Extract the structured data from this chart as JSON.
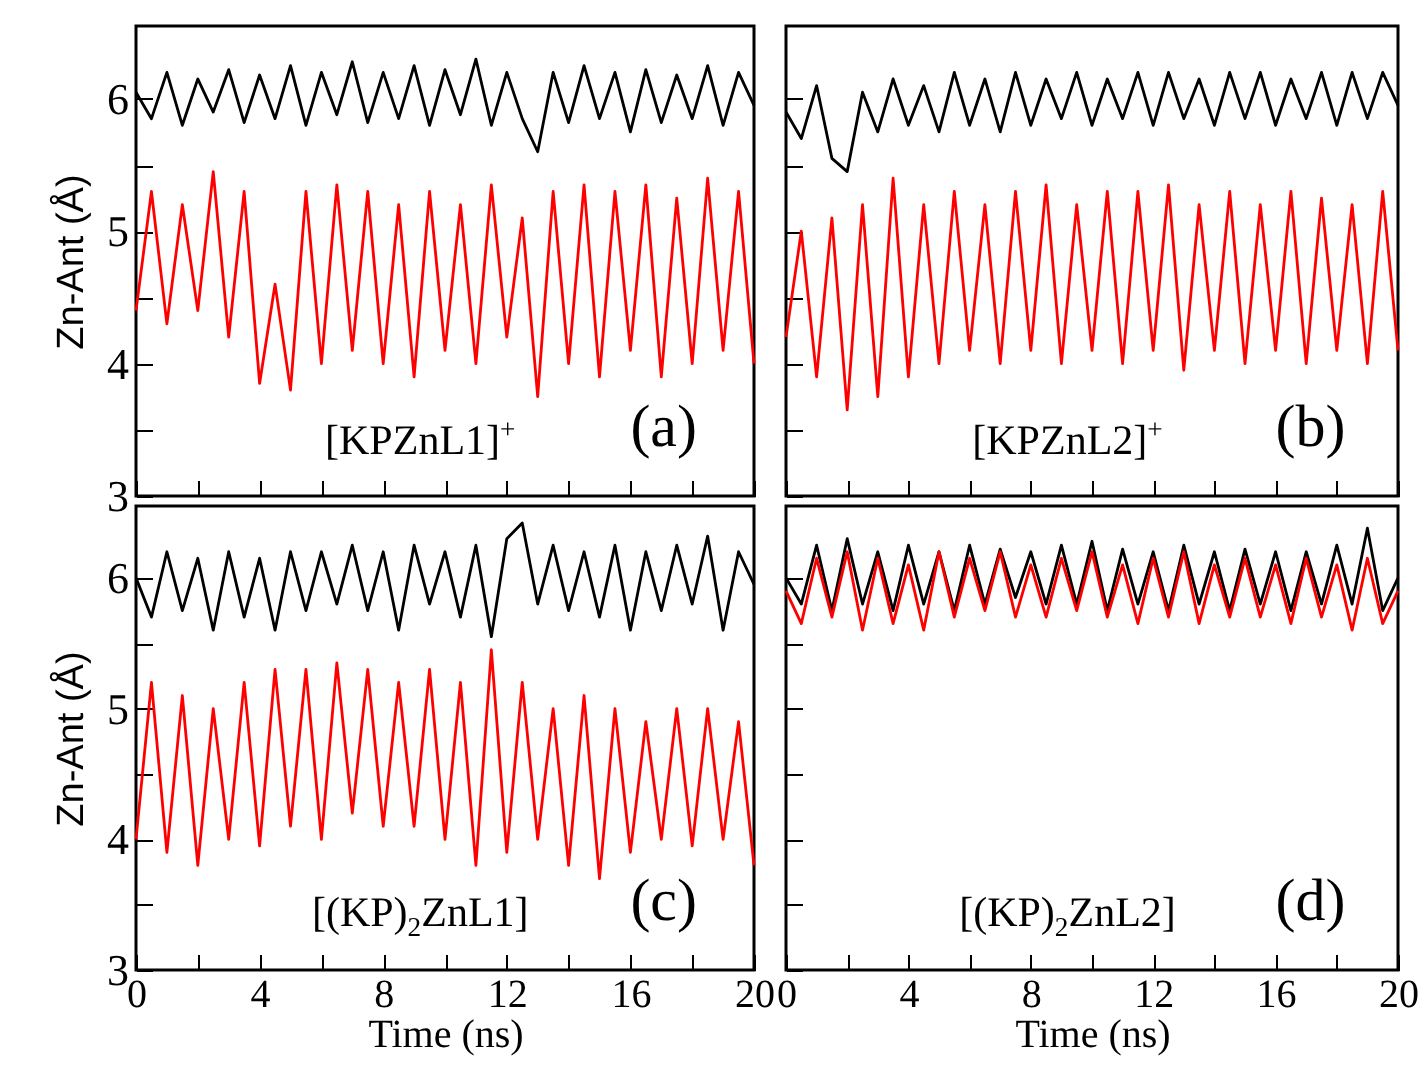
{
  "chart_data": [
    {
      "type": "line",
      "ylabel": "Zn-Ant  (Å)",
      "annotations": [
        "[KPZnL1]$^{+}$",
        "(a)"
      ],
      "tick_labels": "y",
      "xlim": [
        0,
        20
      ],
      "xticks": [
        0,
        {
          "value": 2,
          "label": null
        },
        4,
        {
          "value": 6,
          "label": null
        },
        8,
        {
          "value": 10,
          "label": null
        },
        12,
        {
          "value": 14,
          "label": null
        },
        16,
        {
          "value": 18,
          "label": null
        },
        20
      ],
      "ylim": [
        3,
        6.55
      ],
      "yticks": [
        3,
        {
          "value": 3.5,
          "label": null
        },
        4,
        {
          "value": 4.5,
          "label": null
        },
        5,
        {
          "value": 5.5,
          "label": null
        },
        6
      ],
      "x": [
        0,
        0.5,
        1,
        1.5,
        2,
        2.5,
        3,
        3.5,
        4,
        4.5,
        5,
        5.5,
        6,
        6.5,
        7,
        7.5,
        8,
        8.5,
        9,
        9.5,
        10,
        10.5,
        11,
        11.5,
        12,
        12.5,
        13,
        13.5,
        14,
        14.5,
        15,
        15.5,
        16,
        16.5,
        17,
        17.5,
        18,
        18.5,
        19,
        19.5,
        20
      ],
      "series": [
        {
          "color": "#000000",
          "values": [
            6.05,
            5.85,
            6.2,
            5.8,
            6.15,
            5.9,
            6.22,
            5.82,
            6.18,
            5.85,
            6.25,
            5.8,
            6.2,
            5.88,
            6.28,
            5.82,
            6.2,
            5.85,
            6.25,
            5.8,
            6.22,
            5.88,
            6.3,
            5.8,
            6.2,
            5.85,
            5.6,
            6.2,
            5.82,
            6.25,
            5.85,
            6.2,
            5.75,
            6.22,
            5.82,
            6.18,
            5.85,
            6.25,
            5.8,
            6.2,
            5.95
          ]
        },
        {
          "color": "#ff0000",
          "values": [
            4.4,
            5.3,
            4.3,
            5.2,
            4.4,
            5.45,
            4.2,
            5.3,
            3.85,
            4.6,
            3.8,
            5.3,
            4.0,
            5.35,
            4.1,
            5.3,
            4.0,
            5.2,
            3.9,
            5.3,
            4.1,
            5.2,
            4.0,
            5.35,
            4.2,
            5.1,
            3.75,
            5.3,
            4.0,
            5.35,
            3.9,
            5.3,
            4.1,
            5.35,
            3.9,
            5.25,
            4.0,
            5.4,
            4.1,
            5.3,
            4.0
          ]
        }
      ]
    },
    {
      "type": "line",
      "annotations": [
        "[KPZnL2]$^{+}$",
        "(b)"
      ],
      "tick_labels": false,
      "xlim": [
        0,
        20
      ],
      "xticks": [
        0,
        {
          "value": 2,
          "label": null
        },
        4,
        {
          "value": 6,
          "label": null
        },
        8,
        {
          "value": 10,
          "label": null
        },
        12,
        {
          "value": 14,
          "label": null
        },
        16,
        {
          "value": 18,
          "label": null
        },
        20
      ],
      "ylim": [
        3,
        6.55
      ],
      "yticks": [
        3,
        {
          "value": 3.5,
          "label": null
        },
        4,
        {
          "value": 4.5,
          "label": null
        },
        5,
        {
          "value": 5.5,
          "label": null
        },
        6
      ],
      "x": [
        0,
        0.5,
        1,
        1.5,
        2,
        2.5,
        3,
        3.5,
        4,
        4.5,
        5,
        5.5,
        6,
        6.5,
        7,
        7.5,
        8,
        8.5,
        9,
        9.5,
        10,
        10.5,
        11,
        11.5,
        12,
        12.5,
        13,
        13.5,
        14,
        14.5,
        15,
        15.5,
        16,
        16.5,
        17,
        17.5,
        18,
        18.5,
        19,
        19.5,
        20
      ],
      "series": [
        {
          "color": "#000000",
          "values": [
            5.9,
            5.7,
            6.1,
            5.55,
            5.45,
            6.05,
            5.75,
            6.15,
            5.8,
            6.1,
            5.75,
            6.2,
            5.8,
            6.15,
            5.75,
            6.2,
            5.8,
            6.15,
            5.85,
            6.2,
            5.8,
            6.15,
            5.85,
            6.2,
            5.8,
            6.2,
            5.85,
            6.15,
            5.8,
            6.2,
            5.85,
            6.2,
            5.8,
            6.15,
            5.85,
            6.2,
            5.8,
            6.2,
            5.85,
            6.2,
            5.95
          ]
        },
        {
          "color": "#ff0000",
          "values": [
            4.2,
            5.0,
            3.9,
            5.1,
            3.65,
            5.2,
            3.75,
            5.4,
            3.9,
            5.2,
            4.0,
            5.3,
            4.1,
            5.2,
            4.0,
            5.3,
            4.1,
            5.35,
            4.0,
            5.2,
            4.1,
            5.3,
            4.0,
            5.3,
            4.1,
            5.35,
            3.95,
            5.2,
            4.1,
            5.3,
            4.0,
            5.2,
            4.1,
            5.3,
            4.0,
            5.25,
            4.1,
            5.2,
            4.0,
            5.3,
            4.1
          ]
        }
      ]
    },
    {
      "type": "line",
      "xlabel": "Time  (ns)",
      "ylabel": "Zn-Ant  (Å)",
      "annotations": [
        "[(KP)$_{2}$ZnL1]",
        "(c)"
      ],
      "xlim": [
        0,
        20
      ],
      "xticks": [
        0,
        {
          "value": 2,
          "label": null
        },
        4,
        {
          "value": 6,
          "label": null
        },
        8,
        {
          "value": 10,
          "label": null
        },
        12,
        {
          "value": 14,
          "label": null
        },
        16,
        {
          "value": 18,
          "label": null
        },
        20
      ],
      "ylim": [
        3,
        6.55
      ],
      "yticks": [
        3,
        {
          "value": 3.5,
          "label": null
        },
        4,
        {
          "value": 4.5,
          "label": null
        },
        5,
        {
          "value": 5.5,
          "label": null
        },
        6
      ],
      "x": [
        0,
        0.5,
        1,
        1.5,
        2,
        2.5,
        3,
        3.5,
        4,
        4.5,
        5,
        5.5,
        6,
        6.5,
        7,
        7.5,
        8,
        8.5,
        9,
        9.5,
        10,
        10.5,
        11,
        11.5,
        12,
        12.5,
        13,
        13.5,
        14,
        14.5,
        15,
        15.5,
        16,
        16.5,
        17,
        17.5,
        18,
        18.5,
        19,
        19.5,
        20
      ],
      "series": [
        {
          "color": "#000000",
          "values": [
            6.0,
            5.7,
            6.2,
            5.75,
            6.15,
            5.6,
            6.2,
            5.7,
            6.15,
            5.6,
            6.2,
            5.75,
            6.2,
            5.8,
            6.25,
            5.75,
            6.2,
            5.6,
            6.25,
            5.8,
            6.2,
            5.7,
            6.25,
            5.55,
            6.3,
            6.42,
            5.8,
            6.25,
            5.75,
            6.2,
            5.7,
            6.25,
            5.6,
            6.2,
            5.75,
            6.25,
            5.8,
            6.32,
            5.6,
            6.2,
            5.95
          ]
        },
        {
          "color": "#ff0000",
          "values": [
            4.0,
            5.2,
            3.9,
            5.1,
            3.8,
            5.0,
            4.0,
            5.2,
            3.95,
            5.3,
            4.1,
            5.3,
            4.0,
            5.35,
            4.2,
            5.3,
            4.1,
            5.2,
            4.1,
            5.3,
            4.0,
            5.2,
            3.8,
            5.45,
            3.9,
            5.2,
            4.0,
            5.0,
            3.8,
            5.1,
            3.7,
            5.0,
            3.9,
            4.9,
            4.0,
            5.0,
            3.95,
            5.0,
            4.0,
            4.9,
            3.8
          ]
        }
      ]
    },
    {
      "type": "line",
      "xlabel": "Time  (ns)",
      "annotations": [
        "[(KP)$_{2}$ZnL2]",
        "(d)"
      ],
      "tick_labels": "x",
      "xlim": [
        0,
        20
      ],
      "xticks": [
        0,
        {
          "value": 2,
          "label": null
        },
        4,
        {
          "value": 6,
          "label": null
        },
        8,
        {
          "value": 10,
          "label": null
        },
        12,
        {
          "value": 14,
          "label": null
        },
        16,
        {
          "value": 18,
          "label": null
        },
        20
      ],
      "ylim": [
        3,
        6.55
      ],
      "yticks": [
        3,
        {
          "value": 3.5,
          "label": null
        },
        4,
        {
          "value": 4.5,
          "label": null
        },
        5,
        {
          "value": 5.5,
          "label": null
        },
        6
      ],
      "x": [
        0,
        0.5,
        1,
        1.5,
        2,
        2.5,
        3,
        3.5,
        4,
        4.5,
        5,
        5.5,
        6,
        6.5,
        7,
        7.5,
        8,
        8.5,
        9,
        9.5,
        10,
        10.5,
        11,
        11.5,
        12,
        12.5,
        13,
        13.5,
        14,
        14.5,
        15,
        15.5,
        16,
        16.5,
        17,
        17.5,
        18,
        18.5,
        19,
        19.5,
        20
      ],
      "series": [
        {
          "color": "#000000",
          "values": [
            6.0,
            5.8,
            6.25,
            5.75,
            6.3,
            5.8,
            6.2,
            5.75,
            6.25,
            5.8,
            6.2,
            5.75,
            6.25,
            5.8,
            6.22,
            5.85,
            6.2,
            5.8,
            6.25,
            5.8,
            6.28,
            5.75,
            6.22,
            5.8,
            6.2,
            5.75,
            6.25,
            5.8,
            6.2,
            5.75,
            6.22,
            5.8,
            6.2,
            5.75,
            6.2,
            5.8,
            6.25,
            5.8,
            6.38,
            5.75,
            6.0
          ]
        },
        {
          "color": "#ff0000",
          "values": [
            5.9,
            5.65,
            6.15,
            5.7,
            6.2,
            5.6,
            6.15,
            5.65,
            6.1,
            5.6,
            6.2,
            5.7,
            6.15,
            5.75,
            6.2,
            5.7,
            6.1,
            5.7,
            6.15,
            5.75,
            6.2,
            5.7,
            6.1,
            5.65,
            6.15,
            5.7,
            6.2,
            5.65,
            6.1,
            5.7,
            6.15,
            5.7,
            6.1,
            5.65,
            6.15,
            5.7,
            6.1,
            5.6,
            6.15,
            5.65,
            5.9
          ]
        }
      ]
    }
  ]
}
